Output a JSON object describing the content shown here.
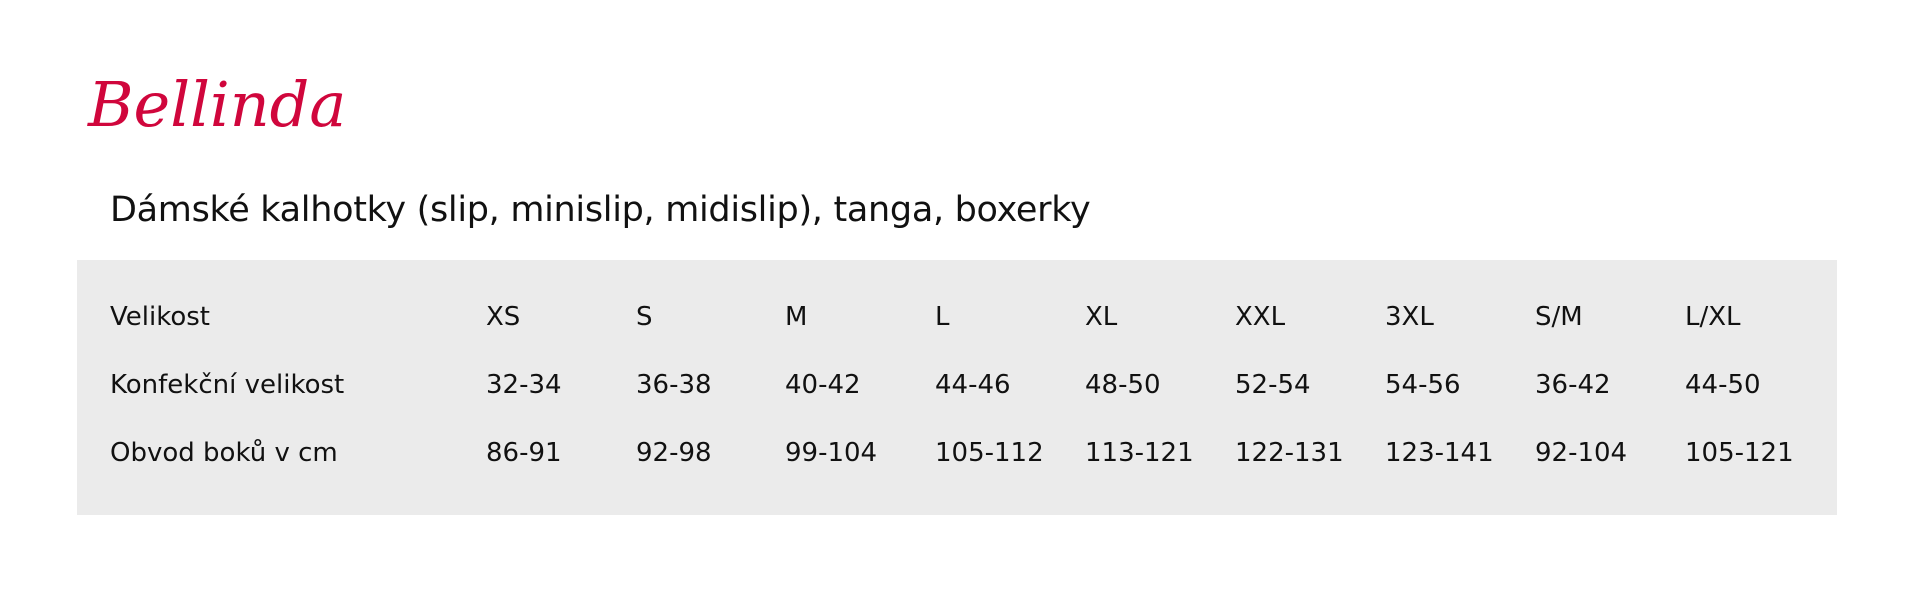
{
  "brand": {
    "logo_text": "Bellinda",
    "color": "#d0063c"
  },
  "title": "Dámské kalhotky (slip, minislip, midislip), tanga, boxerky",
  "table": {
    "background": "#ebebeb",
    "rows": [
      {
        "label": "Velikost",
        "values": [
          "XS",
          "S",
          "M",
          "L",
          "XL",
          "XXL",
          "3XL",
          "S/M",
          "L/XL"
        ]
      },
      {
        "label": "Konfekční velikost",
        "values": [
          "32-34",
          "36-38",
          "40-42",
          "44-46",
          "48-50",
          "52-54",
          "54-56",
          "36-42",
          "44-50"
        ]
      },
      {
        "label": "Obvod boků v cm",
        "values": [
          "86-91",
          "92-98",
          "99-104",
          "105-112",
          "113-121",
          "122-131",
          "123-141",
          "92-104",
          "105-121"
        ]
      }
    ]
  }
}
